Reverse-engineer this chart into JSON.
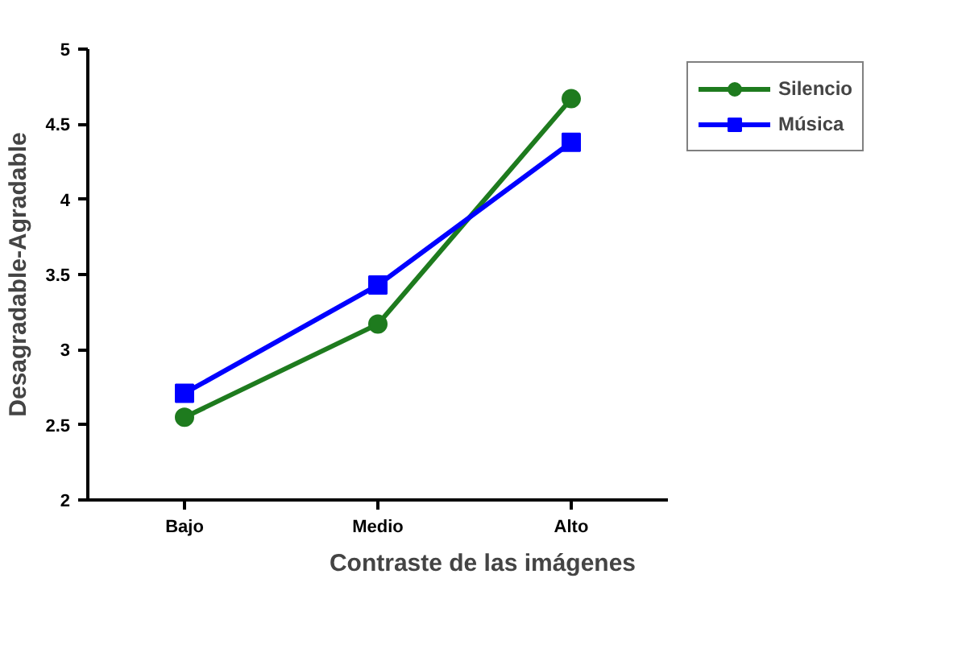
{
  "chart_data": {
    "type": "line",
    "xlabel": "Contraste de las imágenes",
    "ylabel": "Desagradable-Agradable",
    "categories": [
      "Bajo",
      "Medio",
      "Alto"
    ],
    "series": [
      {
        "name": "Silencio",
        "color": "#1e7b1e",
        "values": [
          2.55,
          3.17,
          4.67
        ],
        "marker": "circle"
      },
      {
        "name": "Música",
        "color": "#0000ff",
        "values": [
          2.71,
          3.43,
          4.38
        ],
        "marker": "square"
      }
    ],
    "ylim": [
      2,
      5
    ],
    "yticks": [
      2,
      {
        "value": 2.5,
        "label": "2.5"
      },
      3,
      {
        "value": 3.5,
        "label": "3.5"
      },
      4,
      {
        "value": 4.5,
        "label": "4.5"
      },
      5
    ],
    "grid": false,
    "legend": "top right",
    "line_style": "solid"
  }
}
